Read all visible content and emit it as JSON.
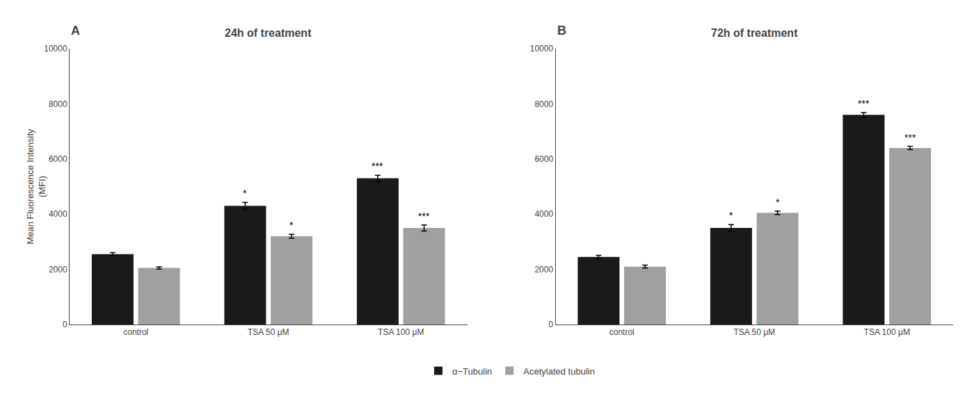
{
  "chart_data": [
    {
      "type": "bar",
      "title": "24h of treatment",
      "panel_label": "A",
      "categories": [
        "control",
        "TSA 50 μM",
        "TSA 100 μM"
      ],
      "series": [
        {
          "name": "α−Tubulin",
          "color": "#1a1a1a",
          "values": [
            2550,
            4300,
            5300
          ],
          "errors": [
            60,
            130,
            110
          ],
          "significance": [
            null,
            "*",
            "***"
          ]
        },
        {
          "name": "Acetylated tubulin",
          "color": "#a0a0a0",
          "values": [
            2050,
            3200,
            3500
          ],
          "errors": [
            40,
            70,
            110
          ],
          "significance": [
            null,
            "*",
            "***"
          ]
        }
      ],
      "ylabel": "Mean Fluorescence Intensity\n(MFI)",
      "ylim": [
        0,
        10000
      ],
      "yticks": [
        0,
        2000,
        4000,
        6000,
        8000,
        10000
      ],
      "grid": false,
      "legend": "bottom"
    },
    {
      "type": "bar",
      "title": "72h of treatment",
      "panel_label": "B",
      "categories": [
        "control",
        "TSA 50 μM",
        "TSA 100 μM"
      ],
      "series": [
        {
          "name": "α−Tubulin",
          "color": "#1a1a1a",
          "values": [
            2450,
            3500,
            7600
          ],
          "errors": [
            55,
            120,
            80
          ],
          "significance": [
            null,
            "*",
            "***"
          ]
        },
        {
          "name": "Acetylated tubulin",
          "color": "#a0a0a0",
          "values": [
            2100,
            4050,
            6400
          ],
          "errors": [
            55,
            65,
            60
          ],
          "significance": [
            null,
            "*",
            "***"
          ]
        }
      ],
      "ylim": [
        0,
        10000
      ],
      "yticks": [
        0,
        2000,
        4000,
        6000,
        8000,
        10000
      ],
      "grid": false,
      "legend": "bottom"
    }
  ]
}
